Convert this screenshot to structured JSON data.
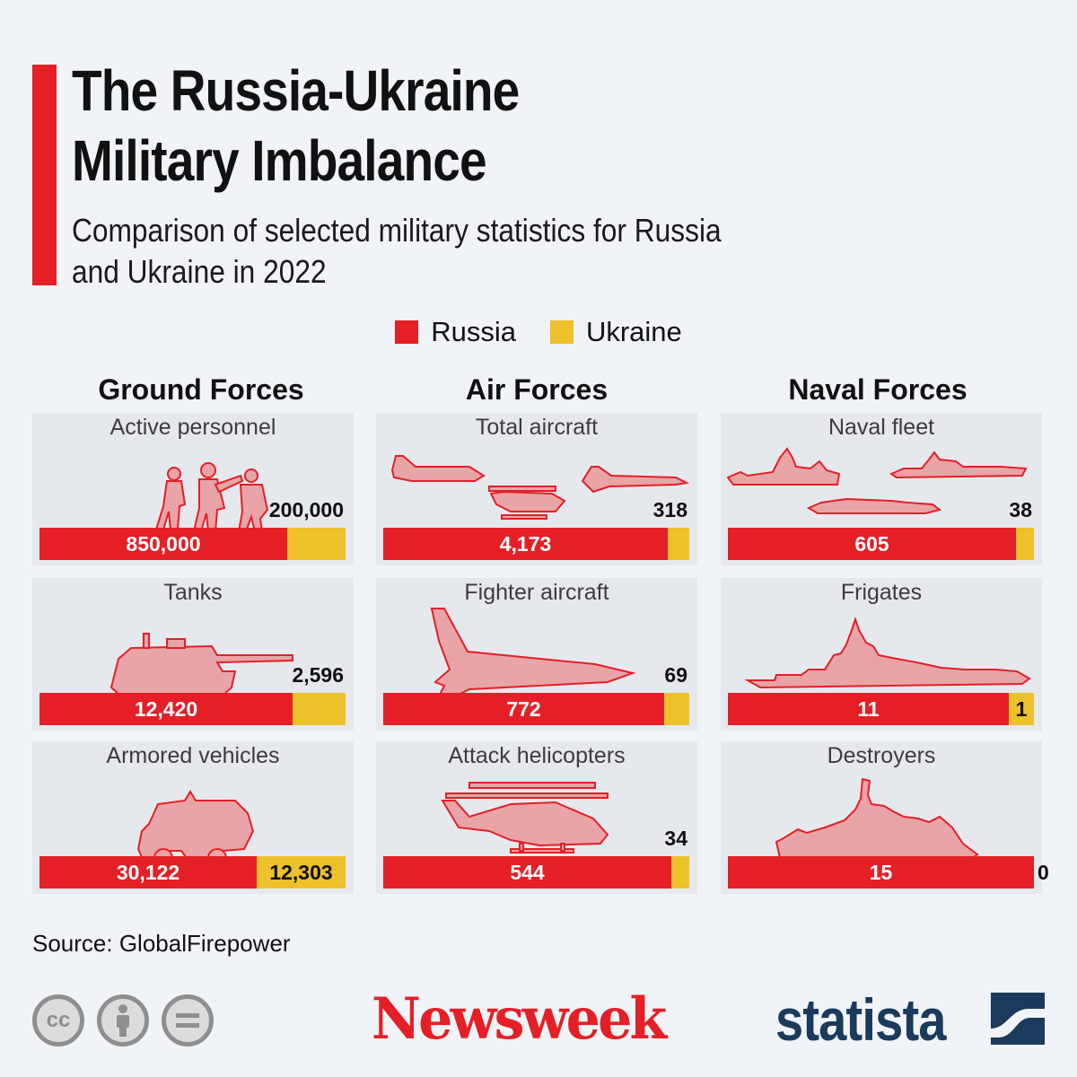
{
  "title_line1": "The Russia-Ukraine",
  "title_line2": "Military Imbalance",
  "subtitle_line1": "Comparison of selected military statistics for Russia",
  "subtitle_line2": "and Ukraine in 2022",
  "legend": [
    {
      "name": "Russia",
      "color": "#e41f26"
    },
    {
      "name": "Ukraine",
      "color": "#ecc12b"
    }
  ],
  "source": "Source: GlobalFirepower",
  "logos": {
    "newsweek": "Newsweek",
    "statista": "statista",
    "license_icons": [
      "cc-icon",
      "by-attribution-icon",
      "no-derivatives-icon"
    ],
    "cc_text": "cc"
  },
  "chart_data": {
    "type": "bar",
    "title": "The Russia-Ukraine Military Imbalance",
    "subtitle": "Comparison of selected military statistics for Russia and Ukraine in 2022",
    "layout": "stacked horizontal bars (Russia vs Ukraine), 3 groups x 3 metrics",
    "groups": [
      {
        "name": "Ground Forces",
        "metrics": [
          {
            "label": "Active personnel",
            "russia": 850000,
            "ukraine": 200000,
            "russia_text": "850,000",
            "ukraine_text": "200,000"
          },
          {
            "label": "Tanks",
            "russia": 12420,
            "ukraine": 2596,
            "russia_text": "12,420",
            "ukraine_text": "2,596"
          },
          {
            "label": "Armored vehicles",
            "russia": 30122,
            "ukraine": 12303,
            "russia_text": "30,122",
            "ukraine_text": "12,303"
          }
        ]
      },
      {
        "name": "Air Forces",
        "metrics": [
          {
            "label": "Total aircraft",
            "russia": 4173,
            "ukraine": 318,
            "russia_text": "4,173",
            "ukraine_text": "318"
          },
          {
            "label": "Fighter aircraft",
            "russia": 772,
            "ukraine": 69,
            "russia_text": "772",
            "ukraine_text": "69"
          },
          {
            "label": "Attack helicopters",
            "russia": 544,
            "ukraine": 34,
            "russia_text": "544",
            "ukraine_text": "34"
          }
        ]
      },
      {
        "name": "Naval Forces",
        "metrics": [
          {
            "label": "Naval fleet",
            "russia": 605,
            "ukraine": 38,
            "russia_text": "605",
            "ukraine_text": "38"
          },
          {
            "label": "Frigates",
            "russia": 11,
            "ukraine": 1,
            "russia_text": "11",
            "ukraine_text": "1"
          },
          {
            "label": "Destroyers",
            "russia": 15,
            "ukraine": 0,
            "russia_text": "15",
            "ukraine_text": "0"
          }
        ]
      }
    ]
  }
}
